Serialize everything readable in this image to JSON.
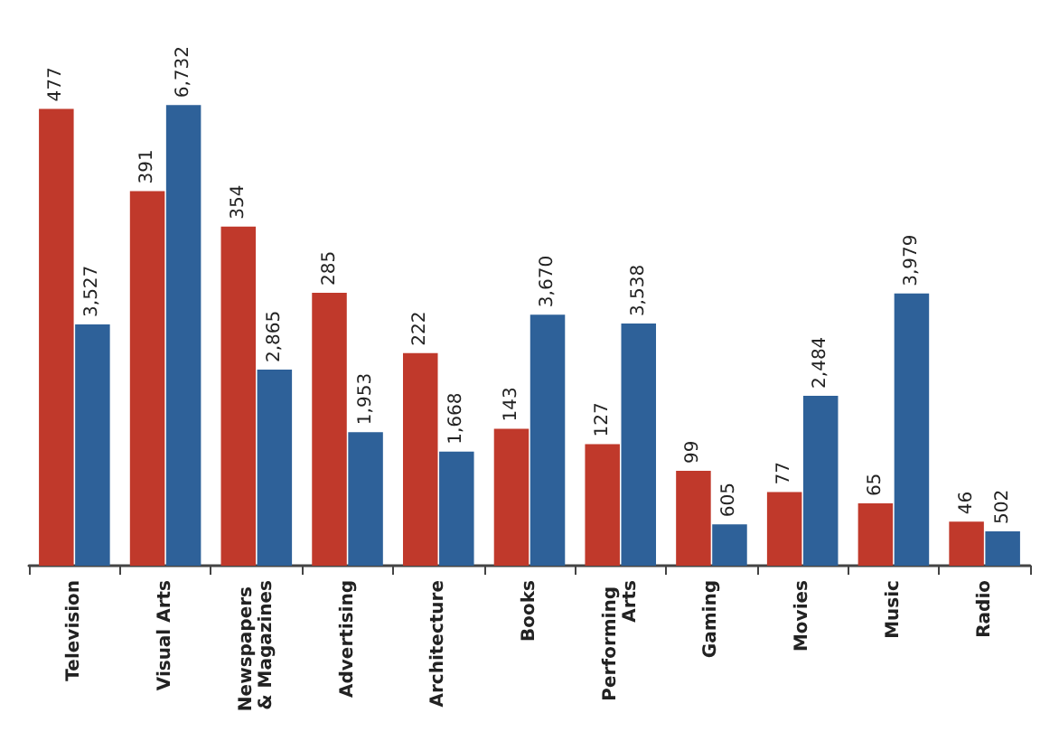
{
  "chart_data": {
    "type": "bar",
    "categories": [
      "Television",
      "Visual Arts",
      "Newspapers & Magazines",
      "Advertising",
      "Architecture",
      "Books",
      "Performing Arts",
      "Gaming",
      "Movies",
      "Music",
      "Radio"
    ],
    "series": [
      {
        "color": "#c0392b",
        "values": [
          477,
          391,
          354,
          285,
          222,
          143,
          127,
          99,
          77,
          65,
          46
        ],
        "value_labels": [
          "477",
          "391",
          "354",
          "285",
          "222",
          "143",
          "127",
          "99",
          "77",
          "65",
          "46"
        ]
      },
      {
        "color": "#2e6199",
        "axis": "y2",
        "values": [
          3527,
          6732,
          2865,
          1953,
          1668,
          3670,
          3538,
          605,
          2484,
          3979,
          502
        ],
        "value_labels": [
          "3,527",
          "6,732",
          "2,865",
          "1,953",
          "1,668",
          "3,670",
          "3,538",
          "605",
          "2,484",
          "3,979",
          "502"
        ]
      }
    ],
    "tick_labels": "x"
  }
}
